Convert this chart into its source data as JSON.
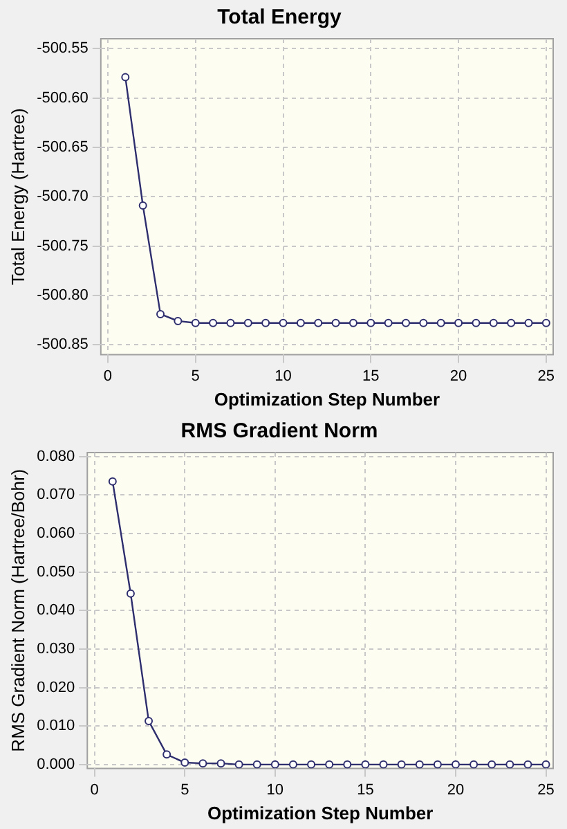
{
  "chart_data": [
    {
      "type": "line",
      "title": "Total Energy",
      "xlabel": "Optimization Step Number",
      "ylabel": "Total Energy (Hartree)",
      "x": [
        1,
        2,
        3,
        4,
        5,
        6,
        7,
        8,
        9,
        10,
        11,
        12,
        13,
        14,
        15,
        16,
        17,
        18,
        19,
        20,
        21,
        22,
        23,
        24,
        25
      ],
      "series": [
        {
          "color": "#2e2e6e",
          "values": [
            -500.579,
            -500.709,
            -500.819,
            -500.826,
            -500.828,
            -500.828,
            -500.828,
            -500.828,
            -500.828,
            -500.828,
            -500.828,
            -500.828,
            -500.828,
            -500.828,
            -500.828,
            -500.828,
            -500.828,
            -500.828,
            -500.828,
            -500.828,
            -500.828,
            -500.828,
            -500.828,
            -500.828,
            -500.828
          ]
        }
      ],
      "xlim": [
        -0.4,
        25.4
      ],
      "xticks": [
        0,
        5,
        10,
        15,
        20,
        25
      ],
      "ylim": [
        -500.86,
        -500.54
      ],
      "yticks": [
        {
          "value": -500.85,
          "label": "-500.85"
        },
        {
          "value": -500.8,
          "label": "-500.80"
        },
        {
          "value": -500.75,
          "label": "-500.75"
        },
        {
          "value": -500.7,
          "label": "-500.70"
        },
        {
          "value": -500.65,
          "label": "-500.65"
        },
        {
          "value": -500.6,
          "label": "-500.60"
        },
        {
          "value": -500.55,
          "label": "-500.55"
        }
      ],
      "grid": true,
      "marker": "circle",
      "line_style": "solid"
    },
    {
      "type": "line",
      "title": "RMS Gradient Norm",
      "xlabel": "Optimization Step Number",
      "ylabel": "RMS Gradient Norm (Hartree/Bohr)",
      "x": [
        1,
        2,
        3,
        4,
        5,
        6,
        7,
        8,
        9,
        10,
        11,
        12,
        13,
        14,
        15,
        16,
        17,
        18,
        19,
        20,
        21,
        22,
        23,
        24,
        25
      ],
      "series": [
        {
          "color": "#2e2e6e",
          "values": [
            0.0735,
            0.0444,
            0.0113,
            0.0026,
            0.0005,
            0.0003,
            0.0003,
            0.0,
            0.0,
            0.0,
            0.0,
            0.0,
            0.0,
            0.0,
            0.0,
            0.0,
            0.0,
            0.0,
            0.0,
            0.0,
            0.0,
            0.0,
            0.0,
            0.0,
            0.0
          ]
        }
      ],
      "xlim": [
        -0.4,
        25.4
      ],
      "xticks": [
        0,
        5,
        10,
        15,
        20,
        25
      ],
      "ylim": [
        -0.001,
        0.081
      ],
      "yticks": [
        {
          "value": 0,
          "label": "0.000"
        },
        {
          "value": 0.01,
          "label": "0.010"
        },
        {
          "value": 0.02,
          "label": "0.020"
        },
        {
          "value": 0.03,
          "label": "0.030"
        },
        {
          "value": 0.04,
          "label": "0.040"
        },
        {
          "value": 0.05,
          "label": "0.050"
        },
        {
          "value": 0.06,
          "label": "0.060"
        },
        {
          "value": 0.07,
          "label": "0.070"
        },
        {
          "value": 0.08,
          "label": "0.080"
        }
      ],
      "grid": true,
      "marker": "circle",
      "line_style": "solid"
    }
  ]
}
